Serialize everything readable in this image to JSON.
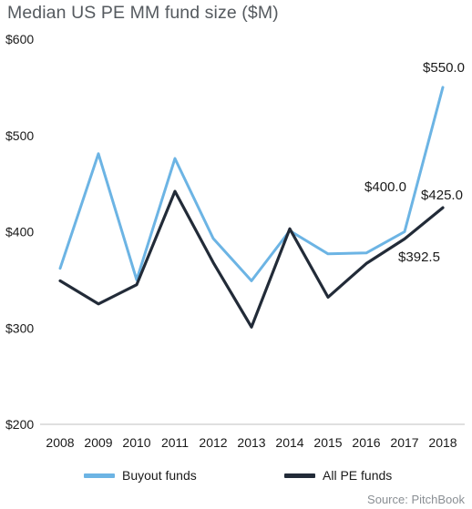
{
  "chart_data": {
    "type": "line",
    "title": "Median US PE MM fund size ($M)",
    "source": "Source: PitchBook",
    "categories": [
      "2008",
      "2009",
      "2010",
      "2011",
      "2012",
      "2013",
      "2014",
      "2015",
      "2016",
      "2017",
      "2018"
    ],
    "ylim": [
      200,
      600
    ],
    "yticks": [
      200,
      300,
      400,
      500,
      600
    ],
    "ytick_labels": [
      "$200",
      "$300",
      "$400",
      "$500",
      "$600"
    ],
    "grid": false,
    "legend_position": "bottom",
    "series": [
      {
        "name": "Buyout funds",
        "color": "#6cb4e4",
        "values": [
          362,
          481,
          350,
          476,
          393,
          349,
          401,
          377,
          378,
          400,
          550
        ]
      },
      {
        "name": "All PE funds",
        "color": "#222b38",
        "values": [
          349,
          325,
          345,
          442,
          368,
          301,
          403,
          332,
          367,
          392.5,
          425
        ]
      }
    ],
    "annotations": [
      "$550.0",
      "$400.0",
      "$425.0",
      "$392.5"
    ]
  }
}
